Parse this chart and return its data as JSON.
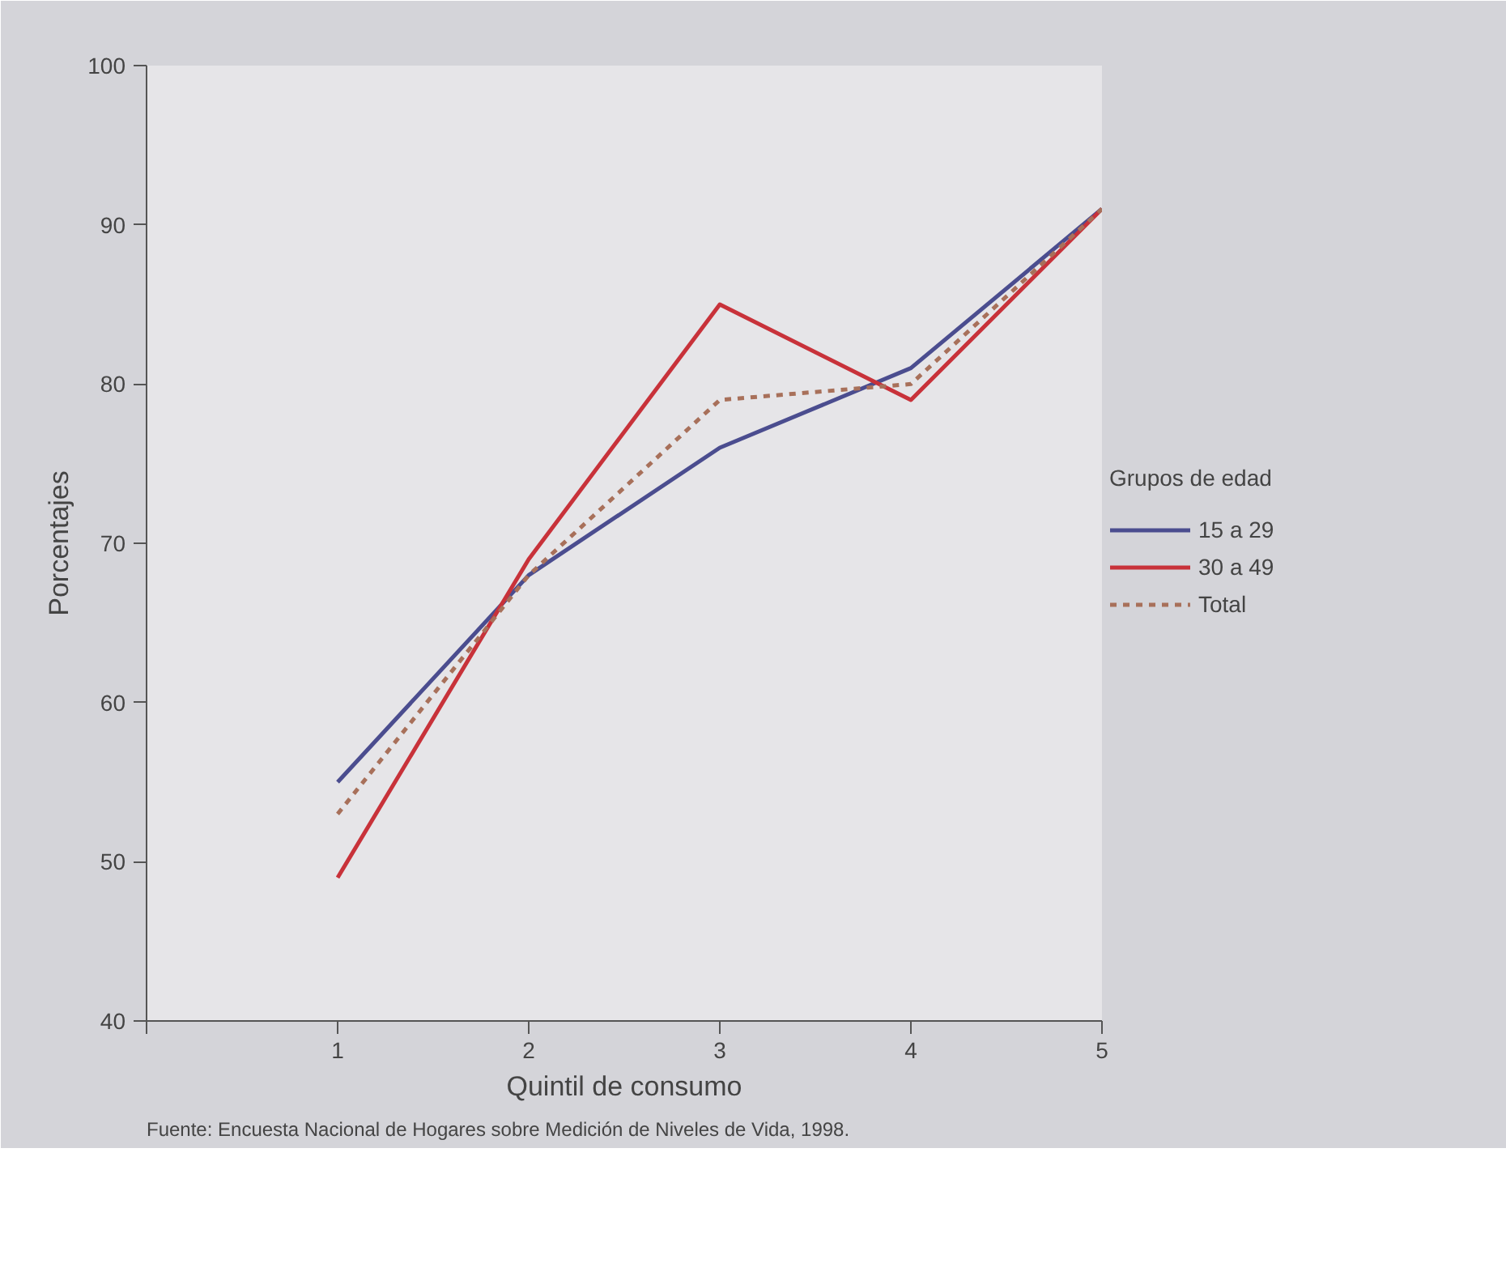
{
  "chart_data": {
    "type": "line",
    "xlabel": "Quintil de consumo",
    "ylabel": "Porcentajes",
    "legend_title": "Grupos de edad",
    "x": [
      1,
      2,
      3,
      4,
      5
    ],
    "series": [
      {
        "name": "15 a 29",
        "color": "#4b4d8f",
        "values": [
          55,
          68,
          76,
          81,
          91
        ]
      },
      {
        "name": "30 a 49",
        "color": "#c8323a",
        "values": [
          49,
          69,
          85,
          79,
          91
        ]
      },
      {
        "name": "Total",
        "color": "#a8705a",
        "values": [
          53,
          68,
          79,
          80,
          91
        ],
        "line_style": "dashed"
      }
    ],
    "xlim": [
      0,
      5
    ],
    "xticks": [
      {
        "value": 0,
        "label": null
      },
      1,
      2,
      3,
      4,
      5
    ],
    "ylim": [
      40,
      100
    ],
    "yticks": [
      40,
      50,
      60,
      70,
      80,
      90,
      100
    ],
    "legend": "right",
    "annotations": [
      "Fuente: Encuesta Nacional de Hogares sobre Medición de Niveles de Vida, 1998."
    ]
  }
}
